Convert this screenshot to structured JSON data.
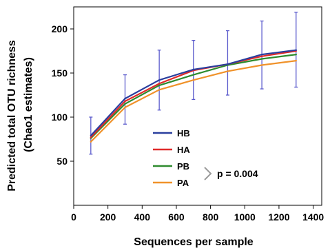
{
  "chart_data": {
    "type": "line",
    "xlabel": "Sequences per sample",
    "ylabel_lines": [
      "Predicted total OTU richness",
      "(Chao1 estimates)"
    ],
    "xlim": [
      0,
      1450
    ],
    "ylim": [
      0,
      225
    ],
    "xticks": [
      0,
      200,
      400,
      600,
      800,
      1000,
      1200,
      1400
    ],
    "yticks": [
      50,
      100,
      150,
      200
    ],
    "x": [
      100,
      300,
      500,
      700,
      900,
      1100,
      1300
    ],
    "series": [
      {
        "name": "HB",
        "color": "#2a3f9e",
        "values": [
          79,
          121,
          142,
          154,
          160,
          171,
          176
        ]
      },
      {
        "name": "HA",
        "color": "#e02a2a",
        "values": [
          77,
          118,
          138,
          153,
          160,
          169,
          175
        ]
      },
      {
        "name": "PB",
        "color": "#2e8b2e",
        "values": [
          76,
          115,
          136,
          148,
          159,
          166,
          171
        ]
      },
      {
        "name": "PA",
        "color": "#f0922a",
        "values": [
          72,
          111,
          131,
          142,
          152,
          159,
          164
        ]
      }
    ],
    "error_bars": {
      "color": "#5a5acc",
      "low": [
        58,
        92,
        108,
        120,
        125,
        132,
        134
      ],
      "high": [
        100,
        148,
        176,
        187,
        198,
        209,
        219
      ]
    },
    "legend_position": "center",
    "annotation": "p = 0.004",
    "grid": false
  }
}
